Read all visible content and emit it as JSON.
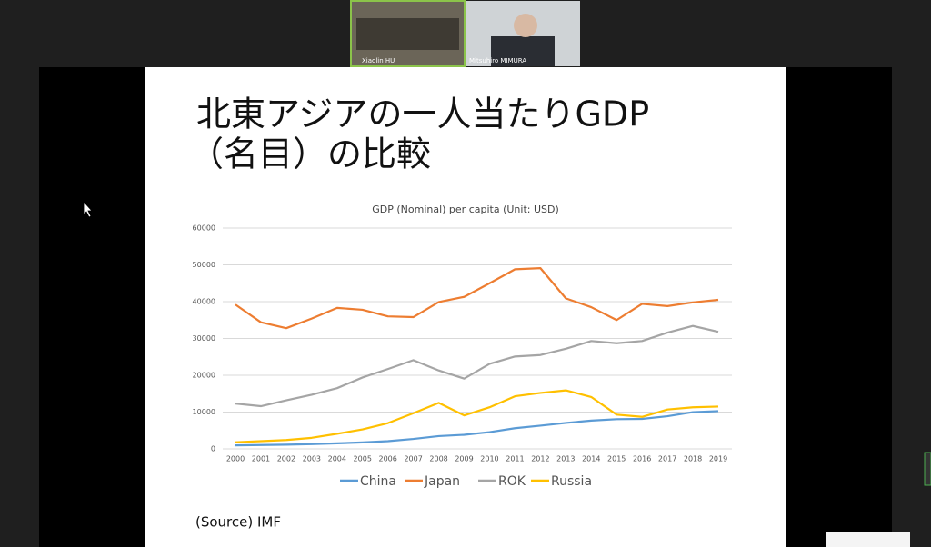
{
  "participants": [
    "Xiaolin HU",
    "Mitsuhiro MIMURA"
  ],
  "slide": {
    "title_lines": [
      "北東アジアの一人当たりGDP",
      "（名目）の比較"
    ],
    "source": "(Source) IMF"
  },
  "chart_data": {
    "type": "line",
    "title": "GDP (Nominal) per capita (Unit: USD)",
    "x": [
      2000,
      2001,
      2002,
      2003,
      2004,
      2005,
      2006,
      2007,
      2008,
      2009,
      2010,
      2011,
      2012,
      2013,
      2014,
      2015,
      2016,
      2017,
      2018,
      2019
    ],
    "xlim": [
      2000,
      2019
    ],
    "series": [
      {
        "name": "China",
        "color": "#5b9bd5",
        "values": [
          959,
          1053,
          1149,
          1289,
          1509,
          1753,
          2099,
          2694,
          3468,
          3832,
          4550,
          5618,
          6317,
          7051,
          7679,
          8067,
          8148,
          8879,
          9977,
          10262
        ]
      },
      {
        "name": "Japan",
        "color": "#ed7d31",
        "values": [
          39200,
          34400,
          32800,
          35400,
          38300,
          37800,
          36000,
          35800,
          39900,
          41300,
          45000,
          48800,
          49100,
          40900,
          38500,
          35000,
          39400,
          38800,
          39800,
          40500
        ]
      },
      {
        "name": "ROK",
        "color": "#a5a5a5",
        "values": [
          12300,
          11600,
          13200,
          14700,
          16500,
          19400,
          21700,
          24100,
          21300,
          19100,
          23100,
          25100,
          25500,
          27200,
          29300,
          28700,
          29300,
          31600,
          33400,
          31800
        ]
      },
      {
        "name": "Russia",
        "color": "#ffc000",
        "values": [
          1800,
          2100,
          2400,
          3000,
          4100,
          5300,
          7000,
          9700,
          12500,
          9100,
          11300,
          14300,
          15200,
          15900,
          14100,
          9300,
          8700,
          10700,
          11300,
          11500
        ]
      }
    ],
    "ylim": [
      0,
      60000
    ],
    "yticks": [
      0,
      10000,
      20000,
      30000,
      40000,
      50000,
      60000
    ],
    "grid": true
  }
}
